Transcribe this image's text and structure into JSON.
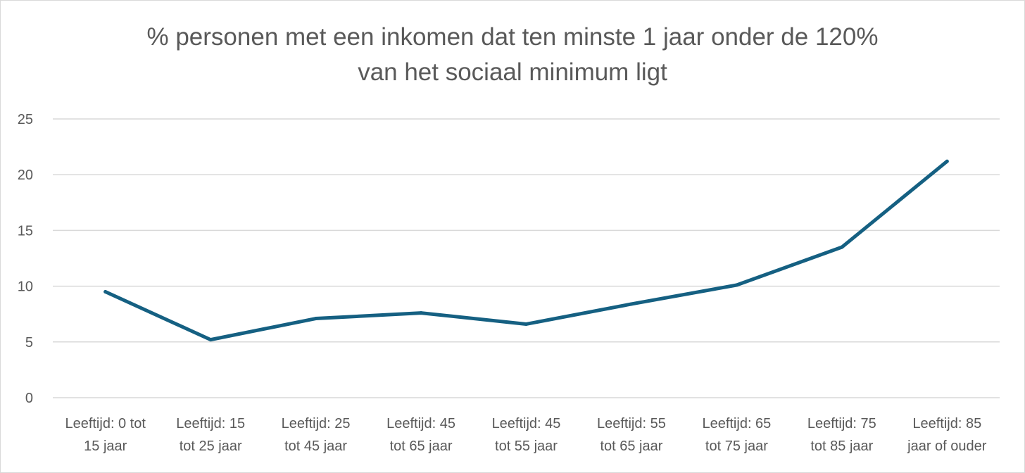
{
  "chart_data": {
    "type": "line",
    "title_lines": [
      "% personen met een inkomen dat  ten minste 1 jaar onder de 120%",
      "van het sociaal minimum ligt"
    ],
    "xlabel": "",
    "ylabel": "",
    "categories": [
      [
        "Leeftijd: 0 tot",
        "15 jaar"
      ],
      [
        "Leeftijd: 15",
        "tot 25 jaar"
      ],
      [
        "Leeftijd: 25",
        "tot 45 jaar"
      ],
      [
        "Leeftijd: 45",
        "tot 65 jaar"
      ],
      [
        "Leeftijd: 45",
        "tot 55 jaar"
      ],
      [
        "Leeftijd: 55",
        "tot 65 jaar"
      ],
      [
        "Leeftijd: 65",
        "tot 75 jaar"
      ],
      [
        "Leeftijd: 75",
        "tot 85 jaar"
      ],
      [
        "Leeftijd: 85",
        "jaar of ouder"
      ]
    ],
    "series": [
      {
        "values": [
          9.5,
          5.2,
          7.1,
          7.6,
          6.6,
          8.4,
          10.1,
          13.5,
          21.2
        ],
        "color": "#156082"
      }
    ],
    "ylim": [
      0,
      25
    ],
    "yticks": [
      "0",
      "5",
      "10",
      "15",
      "20",
      "25"
    ],
    "grid": true,
    "legend": "none"
  }
}
